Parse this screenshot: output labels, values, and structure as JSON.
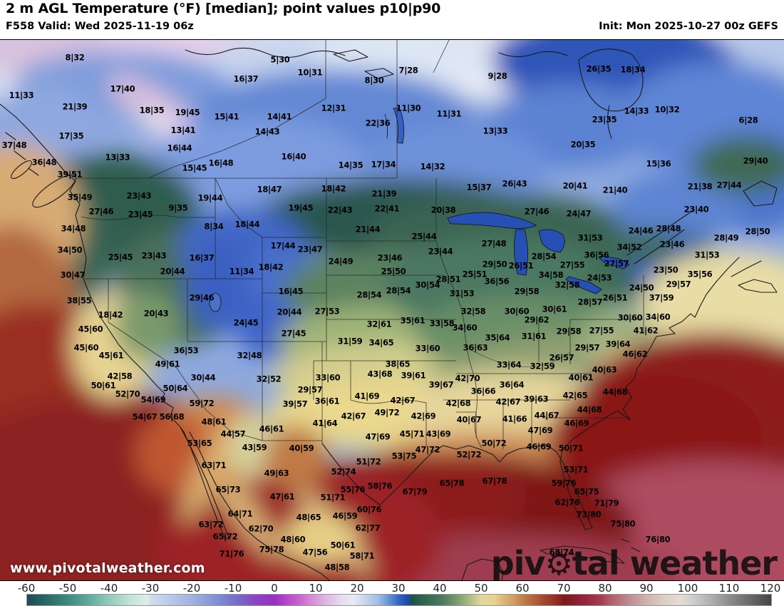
{
  "header": {
    "title": "2 m AGL Temperature (°F) [median]; point values p10|p90",
    "valid": "F558 Valid: Wed 2025-11-19 06z",
    "init": "Init: Mon 2025-10-27 00z GEFS"
  },
  "watermarks": {
    "site_url": "www.pivotalweather.com",
    "brand_prefix": "piv",
    "brand_suffix": "tal weather",
    "gear_glyph": "⚙"
  },
  "colorbar": {
    "min": -60,
    "max": 120,
    "ticks": [
      "-60",
      "-50",
      "-40",
      "-30",
      "-20",
      "-10",
      "0",
      "10",
      "20",
      "30",
      "40",
      "50",
      "60",
      "70",
      "80",
      "90",
      "100",
      "110",
      "120"
    ],
    "stops": [
      {
        "v": -60,
        "c": "#1d4b55"
      },
      {
        "v": -55,
        "c": "#2a6a67"
      },
      {
        "v": -50,
        "c": "#3d8a80"
      },
      {
        "v": -45,
        "c": "#62ab9c"
      },
      {
        "v": -40,
        "c": "#93cbb9"
      },
      {
        "v": -35,
        "c": "#c2e4d6"
      },
      {
        "v": -31,
        "c": "#dceee8"
      },
      {
        "v": -30,
        "c": "#cfdcef"
      },
      {
        "v": -25,
        "c": "#b7c7e8"
      },
      {
        "v": -20,
        "c": "#9fb2e0"
      },
      {
        "v": -15,
        "c": "#8495d6"
      },
      {
        "v": -10,
        "c": "#7473c9"
      },
      {
        "v": -5,
        "c": "#8a46c4"
      },
      {
        "v": 0,
        "c": "#9a2fc4"
      },
      {
        "v": 3,
        "c": "#b948cb"
      },
      {
        "v": 6,
        "c": "#cc64d0"
      },
      {
        "v": 9,
        "c": "#da8bd9"
      },
      {
        "v": 12,
        "c": "#dbb4e2"
      },
      {
        "v": 16,
        "c": "#e6dcee"
      },
      {
        "v": 19,
        "c": "#e9e9f4"
      },
      {
        "v": 22,
        "c": "#c4d3eb"
      },
      {
        "v": 25,
        "c": "#9fbce2"
      },
      {
        "v": 28,
        "c": "#5b8ad2"
      },
      {
        "v": 30,
        "c": "#2f64c2"
      },
      {
        "v": 32,
        "c": "#1c4ab2"
      },
      {
        "v": 33,
        "c": "#1d5249"
      },
      {
        "v": 36,
        "c": "#31654f"
      },
      {
        "v": 40,
        "c": "#4a785c"
      },
      {
        "v": 43,
        "c": "#6d8f66"
      },
      {
        "v": 46,
        "c": "#9ab377"
      },
      {
        "v": 48,
        "c": "#c2c68c"
      },
      {
        "v": 50,
        "c": "#e3d79b"
      },
      {
        "v": 53,
        "c": "#e9d291"
      },
      {
        "v": 55,
        "c": "#dfb87a"
      },
      {
        "v": 58,
        "c": "#d09a5e"
      },
      {
        "v": 60,
        "c": "#c07c48"
      },
      {
        "v": 63,
        "c": "#b25f38"
      },
      {
        "v": 65,
        "c": "#a3472d"
      },
      {
        "v": 68,
        "c": "#942e24"
      },
      {
        "v": 70,
        "c": "#7c1a1a"
      },
      {
        "v": 73,
        "c": "#8d1f30"
      },
      {
        "v": 76,
        "c": "#9c2a42"
      },
      {
        "v": 79,
        "c": "#a63e54"
      },
      {
        "v": 81,
        "c": "#b05c6a"
      },
      {
        "v": 84,
        "c": "#b87a80"
      },
      {
        "v": 87,
        "c": "#c4989c"
      },
      {
        "v": 90,
        "c": "#d0b3ae"
      },
      {
        "v": 94,
        "c": "#dccec4"
      },
      {
        "v": 98,
        "c": "#e4dcd4"
      },
      {
        "v": 100,
        "c": "#d6d4d2"
      },
      {
        "v": 105,
        "c": "#b3b3b3"
      },
      {
        "v": 110,
        "c": "#8b8b8b"
      },
      {
        "v": 115,
        "c": "#686868"
      },
      {
        "v": 120,
        "c": "#454545"
      }
    ]
  },
  "map": {
    "points": [
      [
        105,
        80,
        "8|32"
      ],
      [
        172,
        124,
        "17|40"
      ],
      [
        30,
        133,
        "11|33"
      ],
      [
        105,
        149,
        "21|39"
      ],
      [
        213,
        154,
        "18|35"
      ],
      [
        263,
        157,
        "19|45"
      ],
      [
        100,
        190,
        "17|35"
      ],
      [
        257,
        182,
        "13|41"
      ],
      [
        20,
        203,
        "37|48"
      ],
      [
        252,
        207,
        "16|44"
      ],
      [
        165,
        220,
        "13|33"
      ],
      [
        62,
        227,
        "36|48"
      ],
      [
        273,
        235,
        "15|45"
      ],
      [
        98,
        244,
        "39|51"
      ],
      [
        112,
        276,
        "35|49"
      ],
      [
        195,
        274,
        "23|43"
      ],
      [
        250,
        291,
        "9|35"
      ],
      [
        142,
        296,
        "27|46"
      ],
      [
        197,
        300,
        "23|45"
      ],
      [
        310,
        228,
        "16|48"
      ],
      [
        393,
        83,
        "5|30"
      ],
      [
        435,
        101,
        "10|31"
      ],
      [
        345,
        110,
        "16|37"
      ],
      [
        573,
        98,
        "7|28"
      ],
      [
        525,
        112,
        "8|30"
      ],
      [
        573,
        151,
        "11|30"
      ],
      [
        318,
        163,
        "15|41"
      ],
      [
        392,
        163,
        "14|41"
      ],
      [
        530,
        172,
        "22|36"
      ],
      [
        375,
        184,
        "14|43"
      ],
      [
        468,
        151,
        "12|31"
      ],
      [
        412,
        219,
        "16|40"
      ],
      [
        492,
        231,
        "14|35"
      ],
      [
        538,
        230,
        "17|34"
      ],
      [
        378,
        265,
        "18|47"
      ],
      [
        468,
        264,
        "18|42"
      ],
      [
        539,
        271,
        "21|39"
      ],
      [
        422,
        291,
        "19|45"
      ],
      [
        477,
        294,
        "22|43"
      ],
      [
        543,
        292,
        "22|41"
      ],
      [
        295,
        277,
        "19|44"
      ],
      [
        698,
        106,
        "9|28"
      ],
      [
        840,
        96,
        "26|35"
      ],
      [
        630,
        159,
        "11|31"
      ],
      [
        695,
        183,
        "13|33"
      ],
      [
        848,
        167,
        "23|35"
      ],
      [
        818,
        202,
        "20|35"
      ],
      [
        607,
        233,
        "14|32"
      ],
      [
        672,
        262,
        "15|37"
      ],
      [
        722,
        257,
        "26|43"
      ],
      [
        807,
        260,
        "20|41"
      ],
      [
        863,
        266,
        "21|40"
      ],
      [
        622,
        294,
        "20|38"
      ],
      [
        753,
        296,
        "27|46"
      ],
      [
        812,
        299,
        "24|47"
      ],
      [
        888,
        97,
        "18|34"
      ],
      [
        893,
        155,
        "14|33"
      ],
      [
        936,
        153,
        "10|32"
      ],
      [
        1050,
        168,
        "6|28"
      ],
      [
        924,
        229,
        "15|36"
      ],
      [
        1060,
        225,
        "29|40"
      ],
      [
        982,
        261,
        "21|38"
      ],
      [
        1023,
        259,
        "27|44"
      ],
      [
        977,
        293,
        "23|40"
      ],
      [
        103,
        320,
        "34|48"
      ],
      [
        98,
        350,
        "34|50"
      ],
      [
        169,
        360,
        "25|45"
      ],
      [
        216,
        358,
        "23|43"
      ],
      [
        283,
        361,
        "16|37"
      ],
      [
        102,
        385,
        "30|47"
      ],
      [
        242,
        380,
        "20|44"
      ],
      [
        111,
        421,
        "38|55"
      ],
      [
        283,
        417,
        "29|46"
      ],
      [
        155,
        441,
        "18|42"
      ],
      [
        219,
        439,
        "20|43"
      ],
      [
        127,
        461,
        "45|60"
      ],
      [
        121,
        487,
        "45|60"
      ],
      [
        156,
        498,
        "45|61"
      ],
      [
        261,
        491,
        "36|53"
      ],
      [
        235,
        510,
        "49|61"
      ],
      [
        168,
        527,
        "42|58"
      ],
      [
        285,
        529,
        "30|44"
      ],
      [
        145,
        540,
        "50|61"
      ],
      [
        246,
        544,
        "50|64"
      ],
      [
        179,
        552,
        "52|70"
      ],
      [
        300,
        317,
        "8|34"
      ],
      [
        347,
        314,
        "18|44"
      ],
      [
        516,
        321,
        "21|44"
      ],
      [
        397,
        344,
        "17|44"
      ],
      [
        435,
        349,
        "23|47"
      ],
      [
        478,
        366,
        "24|49"
      ],
      [
        547,
        361,
        "23|46"
      ],
      [
        339,
        380,
        "11|34"
      ],
      [
        380,
        374,
        "18|42"
      ],
      [
        552,
        380,
        "25|50"
      ],
      [
        408,
        408,
        "16|45"
      ],
      [
        518,
        413,
        "28|54"
      ],
      [
        559,
        407,
        "28|54"
      ],
      [
        406,
        437,
        "20|44"
      ],
      [
        459,
        436,
        "27|53"
      ],
      [
        345,
        452,
        "24|45"
      ],
      [
        532,
        454,
        "32|61"
      ],
      [
        579,
        449,
        "35|61"
      ],
      [
        412,
        467,
        "27|45"
      ],
      [
        491,
        478,
        "31|59"
      ],
      [
        535,
        480,
        "34|65"
      ],
      [
        350,
        498,
        "32|48"
      ],
      [
        558,
        510,
        "38|65"
      ],
      [
        533,
        524,
        "43|68"
      ],
      [
        580,
        526,
        "39|61"
      ],
      [
        377,
        531,
        "32|52"
      ],
      [
        460,
        529,
        "33|60"
      ],
      [
        435,
        546,
        "29|57"
      ],
      [
        595,
        331,
        "25|44"
      ],
      [
        618,
        352,
        "23|44"
      ],
      [
        693,
        341,
        "27|48"
      ],
      [
        828,
        333,
        "31|53"
      ],
      [
        763,
        359,
        "28|54"
      ],
      [
        837,
        357,
        "36|56"
      ],
      [
        865,
        369,
        "27|57"
      ],
      [
        694,
        370,
        "29|50"
      ],
      [
        731,
        372,
        "26|51"
      ],
      [
        803,
        371,
        "27|55"
      ],
      [
        666,
        384,
        "25|51"
      ],
      [
        629,
        391,
        "28|51"
      ],
      [
        773,
        385,
        "34|58"
      ],
      [
        841,
        389,
        "24|53"
      ],
      [
        600,
        399,
        "30|54"
      ],
      [
        697,
        394,
        "36|56"
      ],
      [
        796,
        399,
        "32|58"
      ],
      [
        739,
        408,
        "29|58"
      ],
      [
        648,
        411,
        "31|53"
      ],
      [
        863,
        417,
        "26|51"
      ],
      [
        828,
        423,
        "28|57"
      ],
      [
        664,
        436,
        "32|58"
      ],
      [
        725,
        436,
        "30|60"
      ],
      [
        778,
        433,
        "30|61"
      ],
      [
        620,
        453,
        "33|58"
      ],
      [
        652,
        459,
        "34|60"
      ],
      [
        753,
        448,
        "29|62"
      ],
      [
        798,
        464,
        "29|58"
      ],
      [
        844,
        463,
        "27|55"
      ],
      [
        698,
        473,
        "35|64"
      ],
      [
        749,
        471,
        "31|61"
      ],
      [
        600,
        488,
        "33|60"
      ],
      [
        667,
        487,
        "36|63"
      ],
      [
        824,
        487,
        "29|57"
      ],
      [
        867,
        482,
        "39|64"
      ],
      [
        788,
        501,
        "26|57"
      ],
      [
        714,
        511,
        "33|64"
      ],
      [
        761,
        513,
        "32|59"
      ],
      [
        848,
        518,
        "40|63"
      ],
      [
        656,
        530,
        "42|70"
      ],
      [
        815,
        529,
        "40|61"
      ],
      [
        619,
        539,
        "39|67"
      ],
      [
        718,
        539,
        "36|64"
      ],
      [
        678,
        548,
        "36|66"
      ],
      [
        863,
        549,
        "44|68"
      ],
      [
        899,
        323,
        "24|46"
      ],
      [
        938,
        320,
        "28|48"
      ],
      [
        1063,
        324,
        "28|50"
      ],
      [
        883,
        346,
        "34|52"
      ],
      [
        943,
        342,
        "23|46"
      ],
      [
        1019,
        333,
        "28|49"
      ],
      [
        992,
        357,
        "31|53"
      ],
      [
        934,
        378,
        "23|50"
      ],
      [
        982,
        384,
        "35|56"
      ],
      [
        952,
        398,
        "29|57"
      ],
      [
        900,
        403,
        "24|50"
      ],
      [
        928,
        417,
        "37|59"
      ],
      [
        884,
        445,
        "30|60"
      ],
      [
        923,
        444,
        "34|60"
      ],
      [
        906,
        463,
        "41|62"
      ],
      [
        891,
        496,
        "46|62"
      ],
      [
        215,
        560,
        "54|69"
      ],
      [
        283,
        565,
        "59|72"
      ],
      [
        203,
        584,
        "54|67"
      ],
      [
        241,
        584,
        "56|68"
      ],
      [
        280,
        621,
        "53|65"
      ],
      [
        300,
        591,
        "48|61"
      ],
      [
        300,
        652,
        "63|71"
      ],
      [
        296,
        735,
        "63|72"
      ],
      [
        414,
        566,
        "39|57"
      ],
      [
        459,
        562,
        "36|61"
      ],
      [
        515,
        555,
        "41|69"
      ],
      [
        565,
        561,
        "42|67"
      ],
      [
        543,
        578,
        "49|72"
      ],
      [
        496,
        583,
        "42|67"
      ],
      [
        456,
        593,
        "41|64"
      ],
      [
        327,
        608,
        "44|57"
      ],
      [
        381,
        601,
        "46|61"
      ],
      [
        530,
        612,
        "47|69"
      ],
      [
        578,
        608,
        "45|71"
      ],
      [
        357,
        627,
        "43|59"
      ],
      [
        423,
        628,
        "40|59"
      ],
      [
        567,
        639,
        "53|75"
      ],
      [
        517,
        647,
        "51|72"
      ],
      [
        388,
        663,
        "49|63"
      ],
      [
        482,
        661,
        "52|74"
      ],
      [
        320,
        686,
        "65|73"
      ],
      [
        495,
        686,
        "55|76"
      ],
      [
        533,
        681,
        "58|76"
      ],
      [
        582,
        689,
        "67|79"
      ],
      [
        396,
        696,
        "47|61"
      ],
      [
        467,
        697,
        "51|71"
      ],
      [
        337,
        720,
        "64|71"
      ],
      [
        518,
        714,
        "60|76"
      ],
      [
        433,
        725,
        "48|65"
      ],
      [
        484,
        723,
        "46|59"
      ],
      [
        366,
        741,
        "62|70"
      ],
      [
        516,
        740,
        "62|77"
      ],
      [
        316,
        752,
        "65|72"
      ],
      [
        411,
        756,
        "48|60"
      ],
      [
        481,
        764,
        "50|61"
      ],
      [
        381,
        770,
        "75|78"
      ],
      [
        442,
        774,
        "47|56"
      ],
      [
        325,
        776,
        "71|76"
      ],
      [
        508,
        779,
        "58|71"
      ],
      [
        473,
        795,
        "48|58"
      ],
      [
        594,
        583,
        "42|69"
      ],
      [
        643,
        565,
        "42|68"
      ],
      [
        713,
        563,
        "42|67"
      ],
      [
        752,
        559,
        "39|63"
      ],
      [
        807,
        554,
        "42|65"
      ],
      [
        827,
        574,
        "44|68"
      ],
      [
        658,
        588,
        "40|67"
      ],
      [
        722,
        587,
        "41|66"
      ],
      [
        767,
        582,
        "44|67"
      ],
      [
        809,
        593,
        "46|69"
      ],
      [
        615,
        608,
        "43|69"
      ],
      [
        758,
        603,
        "47|69"
      ],
      [
        600,
        630,
        "47|72"
      ],
      [
        693,
        621,
        "50|72"
      ],
      [
        658,
        637,
        "52|72"
      ],
      [
        756,
        626,
        "46|69"
      ],
      [
        801,
        628,
        "50|71"
      ],
      [
        808,
        658,
        "53|71"
      ],
      [
        634,
        677,
        "65|78"
      ],
      [
        694,
        674,
        "67|78"
      ],
      [
        791,
        677,
        "59|76"
      ],
      [
        823,
        689,
        "65|75"
      ],
      [
        796,
        704,
        "62|76"
      ],
      [
        851,
        705,
        "71|79"
      ],
      [
        826,
        721,
        "73|80"
      ],
      [
        874,
        734,
        "75|80"
      ],
      [
        788,
        774,
        "68|74"
      ],
      [
        923,
        756,
        "76|80"
      ]
    ]
  }
}
